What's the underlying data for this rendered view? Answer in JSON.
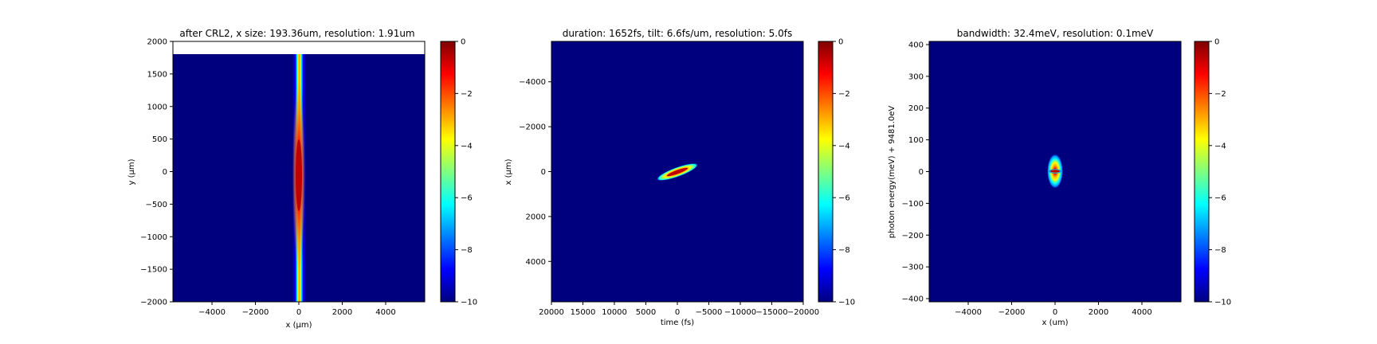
{
  "colors": {
    "background": "#00007f",
    "colormap": [
      "#00007f",
      "#0000ff",
      "#007fff",
      "#00ffff",
      "#7fff7f",
      "#ffff00",
      "#ff7f00",
      "#ff0000",
      "#7f0000"
    ]
  },
  "chart_data": [
    {
      "type": "heatmap",
      "title": "after CRL2, x size: 193.36um, resolution: 1.91um",
      "xlabel": "x (μm)",
      "ylabel": "y (μm)",
      "xlim": [
        -5800,
        5800
      ],
      "ylim": [
        -2000,
        2000
      ],
      "x_ticks": [
        -4000,
        -2000,
        0,
        2000,
        4000
      ],
      "y_ticks": [
        -2000,
        -1500,
        -1000,
        -500,
        0,
        500,
        1000,
        1500,
        2000
      ],
      "data_ylim_top": 1800,
      "colorbar": {
        "range": [
          -10,
          0
        ],
        "ticks": [
          0,
          -2,
          -4,
          -6,
          -8,
          -10
        ]
      },
      "feature": {
        "kind": "vertical_beam",
        "center_x": 0,
        "center_y": 0,
        "sigma_x": 95,
        "extent_y": [
          -2000,
          1800
        ]
      }
    },
    {
      "type": "heatmap",
      "title": "duration: 1652fs, tilt: 6.6fs/um, resolution: 5.0fs",
      "xlabel": "time (fs)",
      "ylabel": "x (μm)",
      "xlim": [
        20000,
        -20000
      ],
      "ylim": [
        5800,
        -5800
      ],
      "x_ticks": [
        20000,
        15000,
        10000,
        5000,
        0,
        -5000,
        -10000,
        -15000,
        -20000
      ],
      "y_ticks": [
        -4000,
        -2000,
        0,
        2000,
        4000
      ],
      "colorbar": {
        "range": [
          -10,
          0
        ],
        "ticks": [
          0,
          -2,
          -4,
          -6,
          -8,
          -10
        ]
      },
      "feature": {
        "kind": "tilted_pulse",
        "center_t": 0,
        "center_x": 0,
        "t_extent": [
          2800,
          -2800
        ],
        "x_extent": [
          300,
          -300
        ]
      }
    },
    {
      "type": "heatmap",
      "title": "bandwidth: 32.4meV, resolution: 0.1meV",
      "xlabel": "x (um)",
      "ylabel": "photon energy(meV) + 9481.0eV",
      "xlim": [
        -5800,
        5800
      ],
      "ylim": [
        -410,
        410
      ],
      "x_ticks": [
        -4000,
        -2000,
        0,
        2000,
        4000
      ],
      "y_ticks": [
        -400,
        -300,
        -200,
        -100,
        0,
        100,
        200,
        300,
        400
      ],
      "colorbar": {
        "range": [
          -10,
          0
        ],
        "ticks": [
          0,
          -2,
          -4,
          -6,
          -8,
          -10
        ]
      },
      "feature": {
        "kind": "spot",
        "center_x": 0,
        "center_e": 0,
        "half_width_x": 150,
        "half_height_e": 50
      }
    }
  ]
}
